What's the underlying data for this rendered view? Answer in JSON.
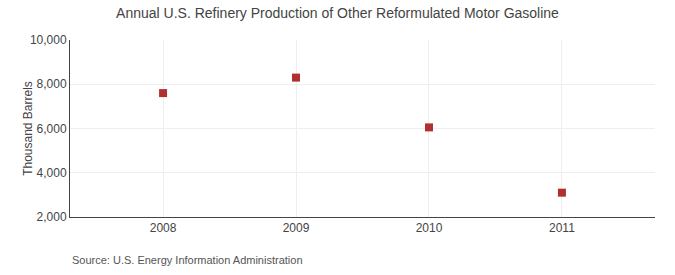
{
  "chart_data": {
    "type": "scatter",
    "title": "Annual U.S. Refinery Production of Other Reformulated Motor Gasoline",
    "ylabel": "Thousand Barrels",
    "x": [
      2008,
      2009,
      2010,
      2011
    ],
    "values": [
      7600,
      8300,
      6050,
      3100
    ],
    "color": "#b03030",
    "marker": "square",
    "xlim": [
      2007.3,
      2011.7
    ],
    "xticks": [
      2008,
      2009,
      2010,
      2011
    ],
    "ylim": [
      2000,
      10000
    ],
    "yticks": [
      {
        "value": 2000,
        "label": "2,000"
      },
      {
        "value": 4000,
        "label": "4,000"
      },
      {
        "value": 6000,
        "label": "6,000"
      },
      {
        "value": 8000,
        "label": "8,000"
      },
      {
        "value": 10000,
        "label": "10,000"
      }
    ],
    "grid": true,
    "annotations": [
      "Source: U.S. Energy Information Administration"
    ]
  }
}
